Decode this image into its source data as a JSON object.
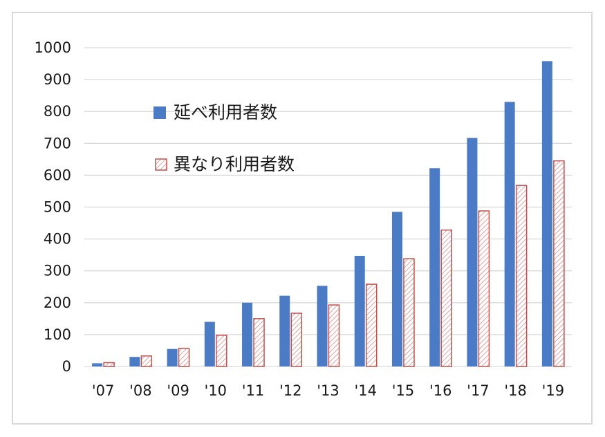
{
  "chart_data": {
    "type": "bar",
    "categories": [
      "'07",
      "'08",
      "'09",
      "'10",
      "'11",
      "'12",
      "'13",
      "'14",
      "'15",
      "'16",
      "'17",
      "'18",
      "'19"
    ],
    "series": [
      {
        "name": "延べ利用者数",
        "values": [
          10,
          30,
          55,
          140,
          200,
          222,
          253,
          347,
          485,
          622,
          717,
          830,
          958
        ],
        "color": "#4a7bc4",
        "pattern": "solid"
      },
      {
        "name": "異なり利用者数",
        "values": [
          12,
          33,
          57,
          98,
          150,
          167,
          193,
          258,
          338,
          428,
          488,
          568,
          645
        ],
        "color": "#c0504d",
        "pattern": "hatched"
      }
    ],
    "yticks": [
      "0",
      "100",
      "200",
      "300",
      "400",
      "500",
      "600",
      "700",
      "800",
      "900",
      "1000"
    ],
    "ylim": [
      0,
      1000
    ],
    "grid": true,
    "legend": "upper-left inside plot"
  }
}
